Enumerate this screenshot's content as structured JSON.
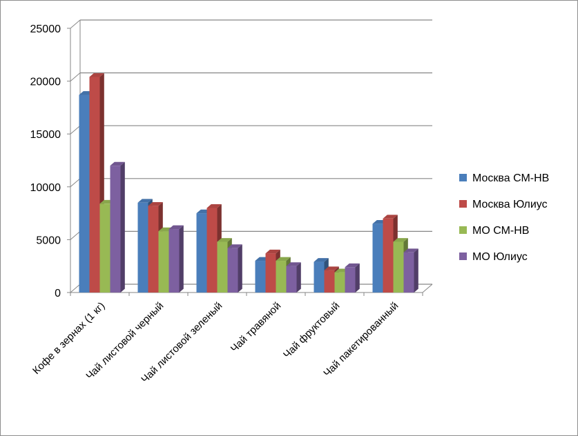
{
  "chart_data": {
    "type": "bar",
    "title": "",
    "xlabel": "",
    "ylabel": "",
    "ylim": [
      0,
      25000
    ],
    "yticks": [
      0,
      5000,
      10000,
      15000,
      20000,
      25000
    ],
    "grid": true,
    "legend_position": "right",
    "categories": [
      "Кофе в зернах (1 кг)",
      "Чай листовой черный",
      "Чай листовой зеленый",
      "Чай  травяной",
      "Чай фруктовый",
      "Чай пакетированный"
    ],
    "series": [
      {
        "name": "Москва СМ-НВ",
        "color": "#4a7ebb",
        "values": [
          18700,
          8500,
          7500,
          3000,
          2900,
          6500
        ]
      },
      {
        "name": "Москва Юлиус",
        "color": "#be4b48",
        "values": [
          20400,
          8200,
          8000,
          3700,
          2100,
          7000
        ]
      },
      {
        "name": "МО СМ-НВ",
        "color": "#98b954",
        "values": [
          8400,
          5800,
          4800,
          3000,
          1900,
          4800
        ]
      },
      {
        "name": "МО Юлиус",
        "color": "#7d60a0",
        "values": [
          12000,
          6000,
          4200,
          2500,
          2400,
          3800
        ]
      }
    ]
  }
}
